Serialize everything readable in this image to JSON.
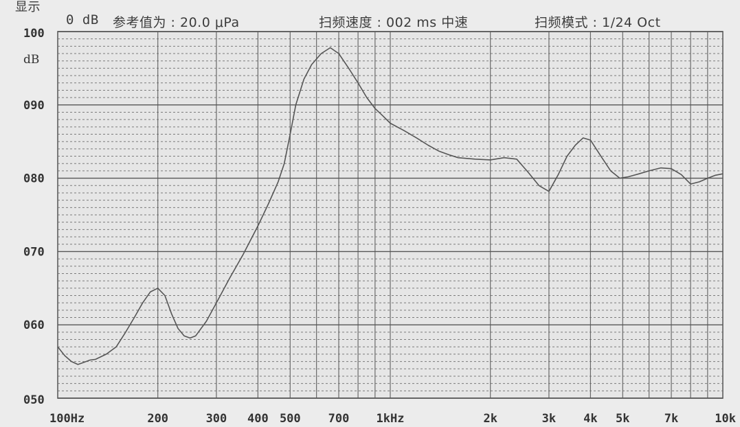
{
  "header": {
    "truncated": "显示",
    "level": "0 dB",
    "reference": "参考值为 : 20.0 μPa",
    "sweep_speed": "扫频速度 : 002 ms 中速",
    "sweep_mode": "扫频模式 : 1/24 Oct"
  },
  "chart_data": {
    "type": "line",
    "title": "",
    "xlabel": "",
    "ylabel": "dB",
    "x_scale": "log",
    "xlim": [
      100,
      10000
    ],
    "ylim": [
      50,
      100
    ],
    "y_ticks": [
      {
        "value": 50,
        "label": "050"
      },
      {
        "value": 60,
        "label": "060"
      },
      {
        "value": 70,
        "label": "070"
      },
      {
        "value": 80,
        "label": "080"
      },
      {
        "value": 90,
        "label": "090"
      },
      {
        "value": 100,
        "label": "100"
      }
    ],
    "y_unit_label": "dB",
    "x_ticks": [
      {
        "value": 100,
        "label": "100Hz"
      },
      {
        "value": 200,
        "label": "200"
      },
      {
        "value": 300,
        "label": "300"
      },
      {
        "value": 400,
        "label": "400"
      },
      {
        "value": 500,
        "label": "500"
      },
      {
        "value": 700,
        "label": "700"
      },
      {
        "value": 1000,
        "label": "1kHz"
      },
      {
        "value": 2000,
        "label": "2k"
      },
      {
        "value": 3000,
        "label": "3k"
      },
      {
        "value": 4000,
        "label": "4k"
      },
      {
        "value": 5000,
        "label": "5k"
      },
      {
        "value": 7000,
        "label": "7k"
      },
      {
        "value": 10000,
        "label": "10k"
      }
    ],
    "x_minor_gridlines": [
      100,
      200,
      300,
      400,
      500,
      600,
      700,
      800,
      900,
      1000,
      2000,
      3000,
      4000,
      5000,
      6000,
      7000,
      8000,
      9000,
      10000
    ],
    "grid": true,
    "series": [
      {
        "color": "#555555",
        "points": [
          [
            100,
            57.0
          ],
          [
            105,
            55.8
          ],
          [
            110,
            55.0
          ],
          [
            115,
            54.6
          ],
          [
            120,
            54.9
          ],
          [
            125,
            55.2
          ],
          [
            130,
            55.3
          ],
          [
            140,
            56.0
          ],
          [
            150,
            57.0
          ],
          [
            160,
            59.0
          ],
          [
            170,
            61.0
          ],
          [
            180,
            63.0
          ],
          [
            190,
            64.5
          ],
          [
            200,
            65.0
          ],
          [
            210,
            64.0
          ],
          [
            220,
            61.5
          ],
          [
            230,
            59.5
          ],
          [
            240,
            58.5
          ],
          [
            250,
            58.2
          ],
          [
            260,
            58.5
          ],
          [
            280,
            60.5
          ],
          [
            300,
            63.0
          ],
          [
            330,
            66.5
          ],
          [
            360,
            69.5
          ],
          [
            400,
            73.5
          ],
          [
            430,
            76.5
          ],
          [
            460,
            79.5
          ],
          [
            480,
            82.0
          ],
          [
            500,
            86.0
          ],
          [
            520,
            90.0
          ],
          [
            550,
            93.5
          ],
          [
            580,
            95.5
          ],
          [
            620,
            97.0
          ],
          [
            660,
            97.8
          ],
          [
            700,
            97.0
          ],
          [
            750,
            95.0
          ],
          [
            800,
            93.0
          ],
          [
            850,
            91.0
          ],
          [
            900,
            89.5
          ],
          [
            950,
            88.5
          ],
          [
            1000,
            87.5
          ],
          [
            1100,
            86.5
          ],
          [
            1200,
            85.5
          ],
          [
            1300,
            84.5
          ],
          [
            1400,
            83.7
          ],
          [
            1500,
            83.2
          ],
          [
            1600,
            82.8
          ],
          [
            1800,
            82.6
          ],
          [
            2000,
            82.5
          ],
          [
            2200,
            82.8
          ],
          [
            2400,
            82.6
          ],
          [
            2600,
            80.8
          ],
          [
            2800,
            79.0
          ],
          [
            3000,
            78.2
          ],
          [
            3200,
            80.5
          ],
          [
            3400,
            83.0
          ],
          [
            3600,
            84.5
          ],
          [
            3800,
            85.5
          ],
          [
            4000,
            85.2
          ],
          [
            4300,
            83.0
          ],
          [
            4600,
            81.0
          ],
          [
            4900,
            80.0
          ],
          [
            5200,
            80.2
          ],
          [
            5600,
            80.6
          ],
          [
            6000,
            81.0
          ],
          [
            6500,
            81.4
          ],
          [
            7000,
            81.3
          ],
          [
            7500,
            80.5
          ],
          [
            8000,
            79.2
          ],
          [
            8500,
            79.5
          ],
          [
            9000,
            80.0
          ],
          [
            9500,
            80.4
          ],
          [
            10000,
            80.6
          ]
        ]
      }
    ]
  }
}
